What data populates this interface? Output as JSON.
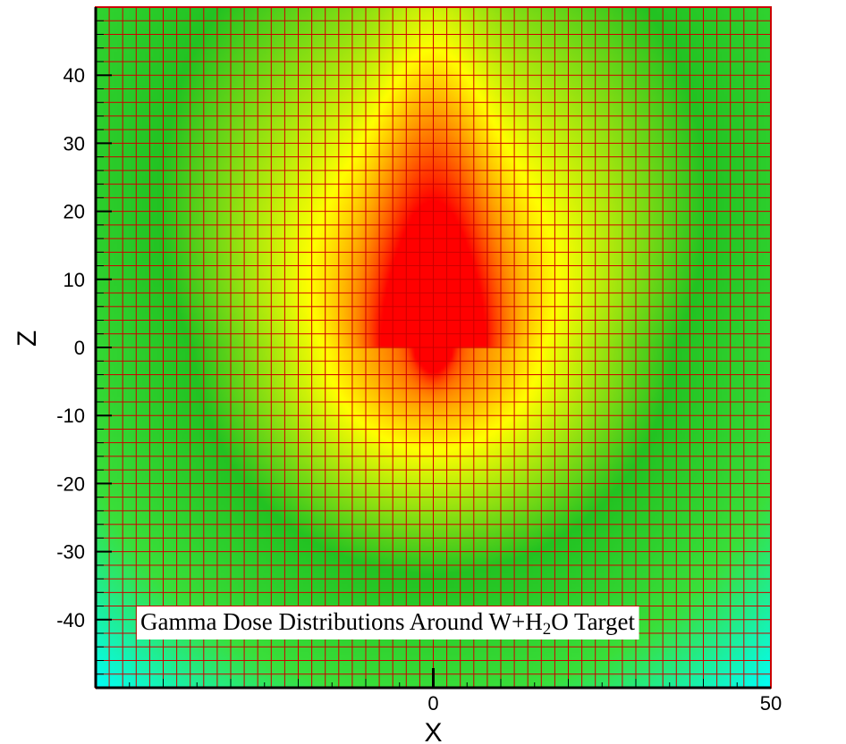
{
  "chart_data": {
    "type": "heatmap",
    "title": "",
    "xlabel": "X",
    "ylabel": "Z",
    "xlim": [
      -50,
      50
    ],
    "ylim": [
      -50,
      50
    ],
    "x_ticks": [
      {
        "value": 0,
        "label": "0"
      },
      {
        "value": 50,
        "label": "50"
      }
    ],
    "y_ticks": [
      {
        "value": 40,
        "label": "40"
      },
      {
        "value": 30,
        "label": "30"
      },
      {
        "value": 20,
        "label": "20"
      },
      {
        "value": 10,
        "label": "10"
      },
      {
        "value": 0,
        "label": "0"
      },
      {
        "value": -10,
        "label": "-10"
      },
      {
        "value": -20,
        "label": "-20"
      },
      {
        "value": -30,
        "label": "-30"
      },
      {
        "value": -40,
        "label": "-40"
      }
    ],
    "grid": true,
    "grid_spacing": 2,
    "grid_color": "#cc0000",
    "colormap": [
      "#1a1aff",
      "#1f8fff",
      "#00ffff",
      "#3adf3a",
      "#22c222",
      "#ffff00",
      "#ff0000"
    ],
    "annotation": {
      "parts": [
        {
          "text": "Gamma Dose Distributions Around W+H",
          "sub": false
        },
        {
          "text": "2",
          "sub": true
        },
        {
          "text": "O Target",
          "sub": false
        }
      ]
    }
  }
}
